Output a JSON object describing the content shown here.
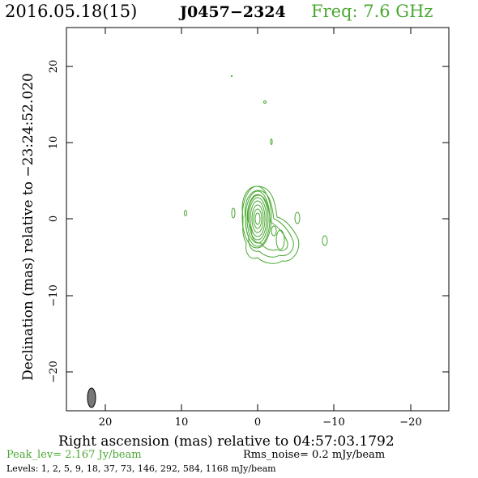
{
  "header": {
    "date": "2016.05.18(15)",
    "source": "J0457−2324",
    "freq": "Freq: 7.6 GHz"
  },
  "axes": {
    "xlabel": "Right ascension (mas) relative to 04:57:03.1792",
    "ylabel": "Declination (mas) relative to −23:24:52.020",
    "x_ticks": [
      "20",
      "10",
      "0",
      "−10",
      "−20"
    ],
    "y_ticks": [
      "20",
      "10",
      "0",
      "−10",
      "−20"
    ]
  },
  "footer": {
    "peak": "Peak_lev=  2.167 Jy/beam",
    "rms": "Rms_noise=  0.2 mJy/beam",
    "levels": "Levels:   1,   2,   5,   9,  18,  37,  73, 146, 292, 584, 1168 mJy/beam"
  },
  "colors": {
    "contour": "#4aa832",
    "beam": "#777777"
  }
}
